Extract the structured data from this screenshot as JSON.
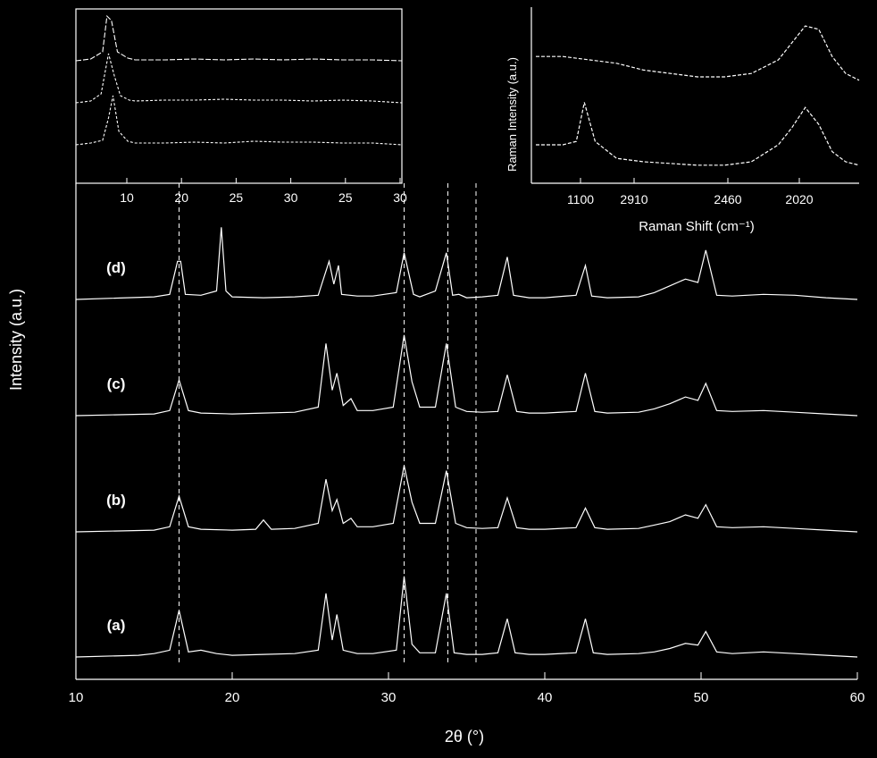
{
  "colors": {
    "background": "#000000",
    "foreground": "#ffffff",
    "dashed_guides": "#ffffff"
  },
  "chart_data": [
    {
      "id": "main",
      "type": "line",
      "title": "",
      "xlabel": "2θ (°)",
      "ylabel": "Intensity (a.u.)",
      "xlim": [
        10,
        60
      ],
      "xticks": [
        "10",
        "20",
        "30",
        "40",
        "50",
        "60"
      ],
      "grid": false,
      "legend": "none",
      "dashed_reference_lines_x": [
        16.6,
        31.0,
        33.8,
        35.6
      ],
      "panel_labels": [
        "(d)",
        "(c)",
        "(b)",
        "(a)"
      ],
      "series": [
        {
          "name": "(d)",
          "x": [
            10,
            15,
            16,
            16.5,
            16.7,
            17,
            18,
            19,
            19.3,
            19.6,
            20,
            22,
            24,
            25.5,
            26.2,
            26.5,
            26.8,
            27,
            28,
            29,
            30.5,
            31,
            31.6,
            32,
            33,
            33.7,
            34.1,
            34.5,
            35,
            36,
            37,
            37.6,
            38,
            39,
            40,
            42,
            42.6,
            43,
            44,
            46,
            47,
            48,
            49,
            49.8,
            50.3,
            51,
            52,
            54,
            56,
            58,
            60
          ],
          "y": [
            0.0,
            0.03,
            0.06,
            0.45,
            0.45,
            0.06,
            0.05,
            0.1,
            0.85,
            0.1,
            0.03,
            0.02,
            0.03,
            0.05,
            0.45,
            0.18,
            0.4,
            0.06,
            0.04,
            0.04,
            0.08,
            0.55,
            0.06,
            0.03,
            0.1,
            0.55,
            0.05,
            0.06,
            0.02,
            0.03,
            0.05,
            0.5,
            0.05,
            0.02,
            0.02,
            0.05,
            0.4,
            0.04,
            0.02,
            0.03,
            0.08,
            0.16,
            0.24,
            0.2,
            0.58,
            0.05,
            0.04,
            0.06,
            0.05,
            0.02,
            0.0
          ]
        },
        {
          "name": "(c)",
          "x": [
            10,
            15,
            16,
            16.6,
            17.2,
            18,
            20,
            22,
            24,
            25.5,
            26,
            26.4,
            26.7,
            27.1,
            27.6,
            28,
            29,
            30.3,
            31,
            31.5,
            32,
            33,
            33.7,
            34.3,
            35,
            36,
            37,
            37.6,
            38.2,
            39,
            40,
            42,
            42.6,
            43.2,
            44,
            46,
            47,
            48,
            49,
            49.8,
            50.3,
            51,
            52,
            54,
            56,
            58,
            60
          ],
          "y": [
            0.0,
            0.02,
            0.06,
            0.42,
            0.06,
            0.03,
            0.02,
            0.03,
            0.04,
            0.1,
            0.85,
            0.3,
            0.5,
            0.12,
            0.2,
            0.06,
            0.06,
            0.1,
            0.95,
            0.4,
            0.1,
            0.1,
            0.85,
            0.1,
            0.05,
            0.04,
            0.05,
            0.48,
            0.05,
            0.03,
            0.03,
            0.05,
            0.5,
            0.05,
            0.03,
            0.04,
            0.08,
            0.14,
            0.22,
            0.18,
            0.38,
            0.06,
            0.05,
            0.06,
            0.04,
            0.02,
            0.0
          ]
        },
        {
          "name": "(b)",
          "x": [
            10,
            15,
            16,
            16.6,
            17.2,
            18,
            20,
            21.5,
            22,
            22.5,
            24,
            25.5,
            26,
            26.4,
            26.7,
            27.1,
            27.6,
            28,
            29,
            30.3,
            31,
            31.5,
            32,
            33,
            33.7,
            34.3,
            35,
            36,
            37,
            37.6,
            38.2,
            39,
            40,
            42,
            42.6,
            43.2,
            44,
            46,
            47,
            48,
            49,
            49.8,
            50.3,
            51,
            52,
            54,
            56,
            58,
            60
          ],
          "y": [
            0.0,
            0.02,
            0.06,
            0.42,
            0.06,
            0.03,
            0.02,
            0.03,
            0.14,
            0.03,
            0.04,
            0.1,
            0.62,
            0.25,
            0.38,
            0.1,
            0.16,
            0.06,
            0.06,
            0.1,
            0.78,
            0.35,
            0.1,
            0.1,
            0.72,
            0.1,
            0.05,
            0.04,
            0.05,
            0.4,
            0.05,
            0.03,
            0.03,
            0.05,
            0.28,
            0.05,
            0.03,
            0.04,
            0.08,
            0.12,
            0.2,
            0.16,
            0.32,
            0.06,
            0.05,
            0.06,
            0.04,
            0.02,
            0.0
          ]
        },
        {
          "name": "(a)",
          "x": [
            10,
            14,
            15,
            16,
            16.6,
            17.2,
            18,
            19,
            20,
            22,
            24,
            25.5,
            26,
            26.4,
            26.7,
            27.1,
            28,
            29,
            30.5,
            31,
            31.5,
            32,
            33,
            33.7,
            34.2,
            35,
            36,
            37,
            37.6,
            38.1,
            39,
            40,
            42,
            42.6,
            43.1,
            44,
            46,
            47,
            48,
            49,
            49.8,
            50.3,
            51,
            52,
            54,
            56,
            58,
            60
          ],
          "y": [
            0.0,
            0.02,
            0.04,
            0.08,
            0.55,
            0.06,
            0.08,
            0.04,
            0.02,
            0.03,
            0.04,
            0.08,
            0.75,
            0.2,
            0.5,
            0.08,
            0.04,
            0.04,
            0.08,
            0.95,
            0.15,
            0.05,
            0.05,
            0.75,
            0.05,
            0.03,
            0.03,
            0.05,
            0.45,
            0.05,
            0.03,
            0.03,
            0.05,
            0.45,
            0.05,
            0.03,
            0.04,
            0.06,
            0.1,
            0.16,
            0.14,
            0.3,
            0.06,
            0.04,
            0.06,
            0.04,
            0.02,
            0.0
          ]
        }
      ]
    },
    {
      "id": "inset-left",
      "type": "line",
      "title": "",
      "xlabel": "",
      "ylabel": "",
      "xlim": [
        8,
        30
      ],
      "xticks": [
        "10",
        "20",
        "25",
        "30",
        "25",
        "30"
      ],
      "grid": false,
      "legend": "none",
      "series": [
        {
          "x": [
            8,
            9,
            9.8,
            10.1,
            10.4,
            10.8,
            11.5,
            12,
            14,
            16,
            18,
            20,
            22,
            24,
            26,
            28,
            30
          ],
          "y": [
            0.0,
            0.02,
            0.1,
            0.5,
            0.45,
            0.1,
            0.03,
            0.01,
            0.01,
            0.02,
            0.01,
            0.02,
            0.01,
            0.02,
            0.01,
            0.01,
            0.0
          ]
        },
        {
          "x": [
            8,
            9,
            9.7,
            10.2,
            10.6,
            11,
            11.6,
            12,
            14,
            16,
            18,
            20,
            22,
            24,
            26,
            28,
            30
          ],
          "y": [
            0.0,
            0.02,
            0.1,
            0.55,
            0.3,
            0.08,
            0.03,
            0.02,
            0.03,
            0.03,
            0.04,
            0.03,
            0.03,
            0.02,
            0.03,
            0.02,
            0.0
          ]
        },
        {
          "x": [
            8,
            9,
            9.8,
            10.2,
            10.5,
            10.9,
            11.5,
            12,
            14,
            16,
            18,
            20,
            22,
            24,
            26,
            28,
            30
          ],
          "y": [
            0.0,
            0.02,
            0.05,
            0.3,
            0.55,
            0.15,
            0.04,
            0.02,
            0.02,
            0.03,
            0.02,
            0.04,
            0.03,
            0.03,
            0.02,
            0.02,
            0.0
          ]
        }
      ]
    },
    {
      "id": "inset-right",
      "type": "line",
      "title": "",
      "xlabel": "Raman Shift (cm⁻¹)",
      "ylabel": "Raman Intensity (a.u.)",
      "xlim": [
        1200,
        2400
      ],
      "xticks": [
        "1100",
        "2910",
        "2460",
        "2020"
      ],
      "grid": false,
      "legend": "none",
      "series": [
        {
          "x": [
            1200,
            1300,
            1400,
            1500,
            1600,
            1700,
            1800,
            1900,
            2000,
            2100,
            2150,
            2200,
            2250,
            2300,
            2350,
            2400
          ],
          "y": [
            0.72,
            0.72,
            0.7,
            0.68,
            0.64,
            0.62,
            0.6,
            0.6,
            0.62,
            0.7,
            0.8,
            0.9,
            0.88,
            0.72,
            0.62,
            0.58
          ]
        },
        {
          "x": [
            1200,
            1300,
            1350,
            1380,
            1420,
            1500,
            1600,
            1700,
            1800,
            1900,
            2000,
            2100,
            2150,
            2200,
            2250,
            2300,
            2350,
            2400
          ],
          "y": [
            0.2,
            0.2,
            0.22,
            0.45,
            0.22,
            0.12,
            0.1,
            0.09,
            0.08,
            0.08,
            0.1,
            0.2,
            0.3,
            0.42,
            0.32,
            0.16,
            0.1,
            0.08
          ]
        }
      ]
    }
  ]
}
